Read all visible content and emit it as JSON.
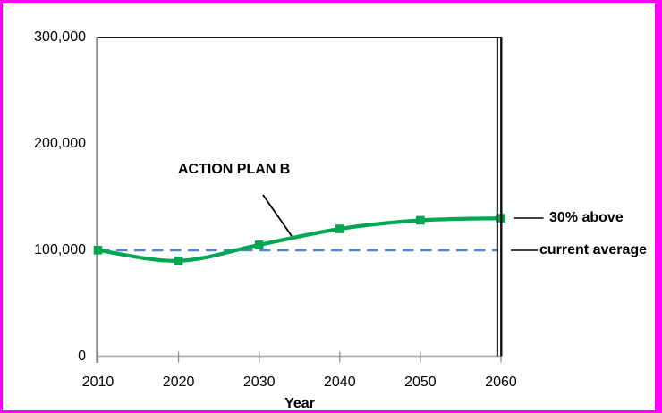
{
  "frame": {
    "border_color": "#FF00FF",
    "background": "#FFFFFF"
  },
  "chart_data": {
    "type": "line",
    "title": "",
    "xlabel": "Year",
    "ylabel": "",
    "xlim": [
      2010,
      2060
    ],
    "ylim": [
      0,
      300000
    ],
    "grid": false,
    "legend_position": "none",
    "x": [
      2010,
      2020,
      2030,
      2040,
      2050,
      2060
    ],
    "x_tick_labels": [
      "2010",
      "2020",
      "2030",
      "2040",
      "2050",
      "2060"
    ],
    "y_tick_values": [
      0,
      100000,
      200000,
      300000
    ],
    "y_tick_labels": [
      "0",
      "100,000",
      "200,000",
      "300,000"
    ],
    "series": [
      {
        "name": "ACTION PLAN B",
        "style": "smooth",
        "color": "#00A651",
        "marker": "square",
        "values": [
          100000,
          90000,
          105000,
          120000,
          128000,
          130000
        ]
      },
      {
        "name": "current average",
        "style": "dashed",
        "color": "#5585C5",
        "marker": "none",
        "values": [
          100000,
          100000,
          100000,
          100000,
          100000,
          100000
        ]
      }
    ],
    "annotations": {
      "plan_label": "ACTION PLAN B",
      "above_label": "30% above",
      "average_label": "current average"
    }
  }
}
